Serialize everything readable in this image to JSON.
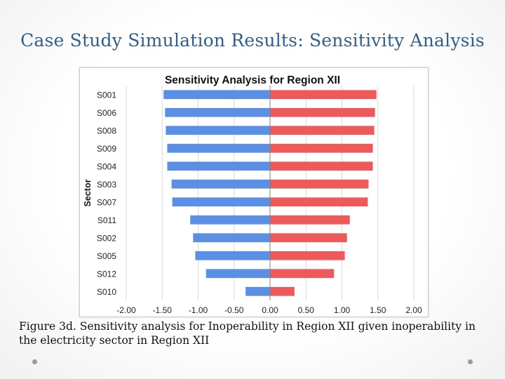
{
  "slide": {
    "title": "Case Study Simulation Results: Sensitivity Analysis",
    "caption": "Figure 3d. Sensitivity analysis for Inoperability in Region XII given inoperability in the electricity sector in Region XII"
  },
  "chart_data": {
    "type": "bar",
    "orientation": "horizontal",
    "title": "Sensitivity Analysis for Region XII",
    "ylabel": "Sector",
    "xlabel": "",
    "categories": [
      "S001",
      "S006",
      "S008",
      "S009",
      "S004",
      "S003",
      "S007",
      "S011",
      "S002",
      "S005",
      "S012",
      "S010"
    ],
    "series": [
      {
        "values": [
          -1.48,
          -1.46,
          -1.45,
          -1.43,
          -1.43,
          -1.37,
          -1.36,
          -1.11,
          -1.07,
          -1.04,
          -0.89,
          -0.34
        ],
        "color": "#5b8fe6"
      },
      {
        "values": [
          1.48,
          1.46,
          1.45,
          1.43,
          1.43,
          1.37,
          1.36,
          1.11,
          1.07,
          1.04,
          0.89,
          0.34
        ],
        "color": "#ee5a5a"
      }
    ],
    "xlim": [
      -2.0,
      2.0
    ],
    "xticks": [
      "-2.00",
      "-1.50",
      "-1.00",
      "-0.50",
      "0.00",
      "0.50",
      "1.00",
      "1.50",
      "2.00"
    ],
    "grid": "vertical"
  }
}
